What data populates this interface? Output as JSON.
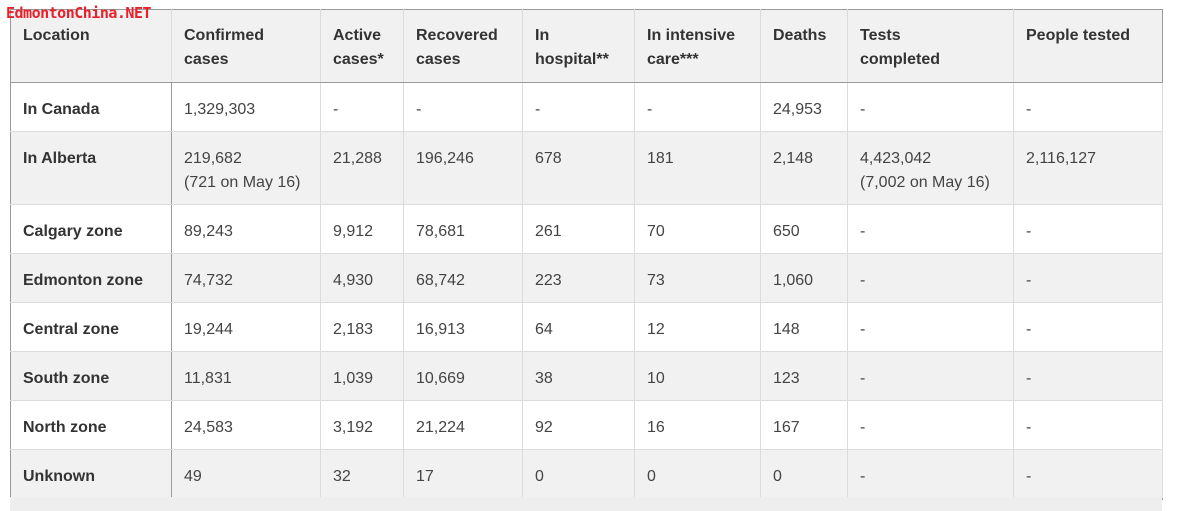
{
  "watermark": "EdmontonChina.NET",
  "table": {
    "headers": [
      [
        "Location",
        ""
      ],
      [
        "Confirmed",
        "cases"
      ],
      [
        "Active",
        "cases*"
      ],
      [
        "Recovered",
        "cases"
      ],
      [
        "In",
        "hospital**"
      ],
      [
        "In intensive",
        "care***"
      ],
      [
        "Deaths",
        ""
      ],
      [
        "Tests",
        "completed"
      ],
      [
        "People tested",
        ""
      ]
    ],
    "rows": [
      {
        "location": "In Canada",
        "confirmed": "1,329,303",
        "confirmed_note": "",
        "active": "-",
        "recovered": "-",
        "hospital": "-",
        "icu": "-",
        "deaths": "24,953",
        "tests": "-",
        "tests_note": "",
        "people_tested": "-"
      },
      {
        "location": "In Alberta",
        "confirmed": "219,682",
        "confirmed_note": "(721 on May 16)",
        "active": "21,288",
        "recovered": "196,246",
        "hospital": "678",
        "icu": "181",
        "deaths": "2,148",
        "tests": "4,423,042",
        "tests_note": "(7,002 on May 16)",
        "people_tested": "2,116,127"
      },
      {
        "location": "Calgary zone",
        "confirmed": "89,243",
        "confirmed_note": "",
        "active": "9,912",
        "recovered": "78,681",
        "hospital": "261",
        "icu": "70",
        "deaths": "650",
        "tests": "-",
        "tests_note": "",
        "people_tested": "-"
      },
      {
        "location": "Edmonton zone",
        "confirmed": "74,732",
        "confirmed_note": "",
        "active": "4,930",
        "recovered": "68,742",
        "hospital": "223",
        "icu": "73",
        "deaths": "1,060",
        "tests": "-",
        "tests_note": "",
        "people_tested": "-"
      },
      {
        "location": "Central zone",
        "confirmed": "19,244",
        "confirmed_note": "",
        "active": "2,183",
        "recovered": "16,913",
        "hospital": "64",
        "icu": "12",
        "deaths": "148",
        "tests": "-",
        "tests_note": "",
        "people_tested": "-"
      },
      {
        "location": "South zone",
        "confirmed": "11,831",
        "confirmed_note": "",
        "active": "1,039",
        "recovered": "10,669",
        "hospital": "38",
        "icu": "10",
        "deaths": "123",
        "tests": "-",
        "tests_note": "",
        "people_tested": "-"
      },
      {
        "location": "North zone",
        "confirmed": "24,583",
        "confirmed_note": "",
        "active": "3,192",
        "recovered": "21,224",
        "hospital": "92",
        "icu": "16",
        "deaths": "167",
        "tests": "-",
        "tests_note": "",
        "people_tested": "-"
      },
      {
        "location": "Unknown",
        "confirmed": "49",
        "confirmed_note": "",
        "active": "32",
        "recovered": "17",
        "hospital": "0",
        "icu": "0",
        "deaths": "0",
        "tests": "-",
        "tests_note": "",
        "people_tested": "-"
      }
    ]
  }
}
